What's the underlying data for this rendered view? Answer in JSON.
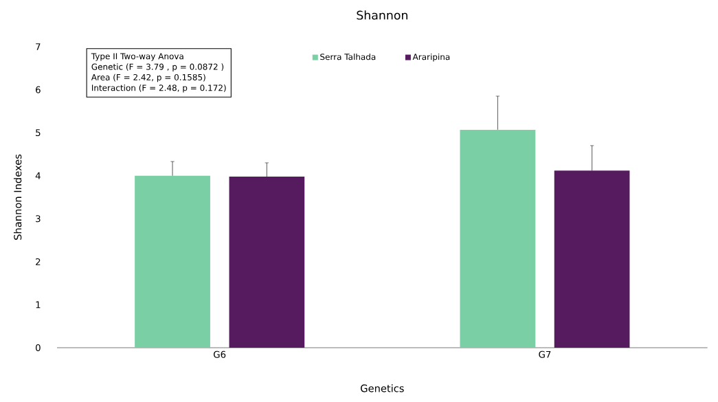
{
  "chart_data": {
    "type": "bar",
    "title": "Shannon",
    "xlabel": "Genetics",
    "ylabel": "Shannon Indexes",
    "categories": [
      "G6",
      "G7"
    ],
    "series": [
      {
        "name": "Serra Talhada",
        "color": "#7acfa5",
        "values": [
          4.0,
          5.07
        ],
        "errors": [
          [
            4.0,
            4.33
          ],
          [
            5.07,
            5.85
          ]
        ]
      },
      {
        "name": "Araripina",
        "color": "#561a5e",
        "values": [
          3.98,
          4.12
        ],
        "errors": [
          [
            3.98,
            4.3
          ],
          [
            4.12,
            4.7
          ]
        ]
      }
    ],
    "ylim": [
      0,
      7
    ],
    "yticks": [
      0,
      1,
      2,
      3,
      4,
      5,
      6,
      7
    ],
    "grid": false,
    "legend": "top",
    "annotations": [
      "Type II Two-way Anova",
      "Genetic (F = 3.79 , p = 0.0872 )",
      "Area (F = 2.42, p = 0.1585)",
      "Interaction (F = 2.48, p = 0.172)"
    ]
  }
}
